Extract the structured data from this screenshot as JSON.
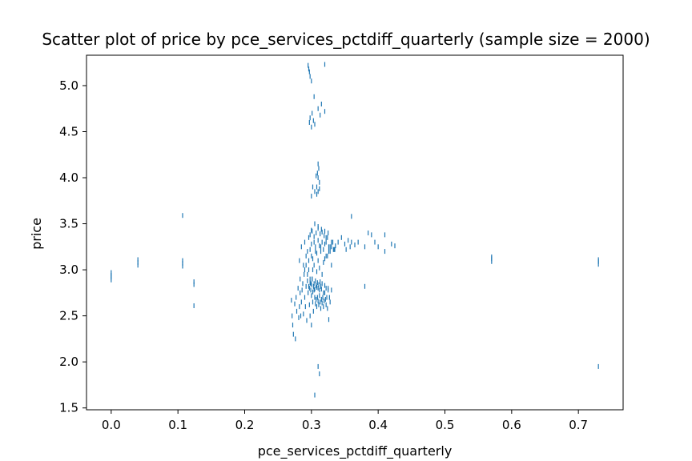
{
  "chart_data": {
    "type": "scatter",
    "title": "Scatter plot of price by pce_services_pctdiff_quarterly (sample size = 2000)",
    "xlabel": "pce_services_pctdiff_quarterly",
    "ylabel": "price",
    "xlim": [
      -0.037,
      0.767
    ],
    "ylim": [
      1.48,
      5.33
    ],
    "xticks": [
      "0.0",
      "0.1",
      "0.2",
      "0.3",
      "0.4",
      "0.5",
      "0.6",
      "0.7"
    ],
    "yticks": [
      "1.5",
      "2.0",
      "2.5",
      "3.0",
      "3.5",
      "4.0",
      "4.5",
      "5.0"
    ],
    "grid": false,
    "marker": "vertical-line",
    "series": [
      {
        "color": "#1f77b4",
        "x": [
          0.0,
          0.0,
          0.0,
          0.0,
          0.04,
          0.04,
          0.04,
          0.107,
          0.107,
          0.107,
          0.107,
          0.124,
          0.124,
          0.124,
          0.27,
          0.271,
          0.272,
          0.273,
          0.275,
          0.276,
          0.277,
          0.278,
          0.28,
          0.281,
          0.282,
          0.283,
          0.283,
          0.284,
          0.285,
          0.286,
          0.287,
          0.288,
          0.289,
          0.29,
          0.291,
          0.292,
          0.293,
          0.294,
          0.295,
          0.296,
          0.297,
          0.298,
          0.299,
          0.3,
          0.3,
          0.301,
          0.302,
          0.303,
          0.304,
          0.305,
          0.306,
          0.307,
          0.308,
          0.309,
          0.31,
          0.311,
          0.312,
          0.313,
          0.314,
          0.315,
          0.316,
          0.317,
          0.318,
          0.319,
          0.32,
          0.321,
          0.322,
          0.323,
          0.324,
          0.325,
          0.326,
          0.327,
          0.328,
          0.33,
          0.282,
          0.285,
          0.288,
          0.29,
          0.292,
          0.294,
          0.296,
          0.298,
          0.3,
          0.302,
          0.304,
          0.306,
          0.308,
          0.31,
          0.312,
          0.314,
          0.316,
          0.318,
          0.32,
          0.322,
          0.324,
          0.326,
          0.328,
          0.33,
          0.333,
          0.336,
          0.29,
          0.292,
          0.294,
          0.296,
          0.298,
          0.3,
          0.302,
          0.304,
          0.306,
          0.308,
          0.31,
          0.312,
          0.314,
          0.316,
          0.318,
          0.32,
          0.322,
          0.324,
          0.326,
          0.328,
          0.33,
          0.332,
          0.334,
          0.298,
          0.301,
          0.304,
          0.307,
          0.31,
          0.313,
          0.316,
          0.319,
          0.322,
          0.325,
          0.305,
          0.31,
          0.315,
          0.3,
          0.32,
          0.296,
          0.297,
          0.298,
          0.299,
          0.3,
          0.301,
          0.302,
          0.303,
          0.304,
          0.305,
          0.306,
          0.307,
          0.308,
          0.309,
          0.31,
          0.311,
          0.312,
          0.313,
          0.314,
          0.315,
          0.316,
          0.318,
          0.32,
          0.322,
          0.325,
          0.308,
          0.31,
          0.312,
          0.309,
          0.311,
          0.31,
          0.308,
          0.312,
          0.31,
          0.3,
          0.302,
          0.305,
          0.307,
          0.297,
          0.298,
          0.3,
          0.301,
          0.303,
          0.304,
          0.31,
          0.315,
          0.313,
          0.32,
          0.305,
          0.295,
          0.296,
          0.297,
          0.298,
          0.3,
          0.32,
          0.33,
          0.335,
          0.34,
          0.345,
          0.35,
          0.352,
          0.355,
          0.358,
          0.36,
          0.365,
          0.37,
          0.38,
          0.385,
          0.39,
          0.395,
          0.4,
          0.41,
          0.42,
          0.425,
          0.36,
          0.41,
          0.38,
          0.57,
          0.57,
          0.57,
          0.73,
          0.73,
          0.73,
          0.73,
          0.31,
          0.312,
          0.305
        ],
        "y": [
          2.97,
          2.94,
          2.92,
          2.89,
          3.11,
          3.08,
          3.05,
          3.59,
          3.1,
          3.07,
          3.04,
          2.87,
          2.84,
          2.61,
          2.67,
          2.5,
          2.4,
          2.3,
          2.63,
          2.25,
          2.7,
          2.55,
          2.8,
          2.48,
          2.6,
          2.75,
          2.9,
          2.5,
          2.65,
          2.78,
          2.85,
          2.52,
          2.95,
          2.7,
          2.6,
          2.82,
          2.45,
          2.88,
          2.75,
          3.0,
          2.62,
          2.5,
          2.85,
          2.72,
          2.4,
          2.9,
          2.65,
          2.55,
          2.78,
          2.7,
          2.63,
          2.68,
          2.6,
          2.7,
          2.66,
          2.62,
          2.72,
          2.65,
          2.58,
          2.68,
          2.64,
          2.7,
          2.6,
          2.66,
          2.75,
          2.68,
          2.62,
          2.7,
          2.58,
          2.8,
          2.46,
          2.7,
          2.65,
          2.78,
          3.1,
          3.25,
          3.05,
          3.3,
          3.15,
          3.2,
          3.35,
          3.22,
          3.28,
          3.12,
          3.3,
          3.25,
          3.18,
          3.32,
          3.26,
          3.2,
          3.3,
          3.22,
          3.28,
          3.15,
          3.35,
          3.25,
          3.2,
          3.3,
          3.22,
          3.26,
          3.0,
          3.05,
          2.95,
          3.1,
          2.9,
          3.15,
          3.0,
          3.05,
          3.2,
          2.98,
          3.1,
          3.02,
          3.25,
          2.95,
          3.08,
          3.12,
          3.3,
          3.15,
          3.2,
          3.25,
          3.05,
          3.3,
          3.22,
          3.38,
          3.42,
          3.36,
          3.4,
          3.45,
          3.39,
          3.41,
          3.37,
          3.35,
          3.4,
          3.5,
          3.47,
          3.44,
          3.43,
          3.42,
          2.82,
          2.8,
          2.86,
          2.78,
          2.84,
          2.9,
          2.76,
          2.82,
          2.85,
          2.79,
          2.88,
          2.83,
          2.81,
          2.86,
          2.8,
          2.84,
          2.78,
          2.87,
          2.82,
          2.79,
          2.85,
          2.75,
          2.83,
          2.8,
          2.78,
          3.9,
          3.85,
          3.95,
          4.05,
          4.1,
          4.15,
          3.82,
          3.88,
          4.0,
          3.8,
          3.9,
          3.85,
          4.02,
          4.6,
          4.65,
          4.55,
          4.7,
          4.62,
          4.88,
          4.75,
          4.8,
          4.68,
          4.72,
          4.58,
          5.22,
          5.18,
          5.15,
          5.1,
          5.05,
          5.23,
          3.25,
          3.22,
          3.3,
          3.35,
          3.28,
          3.22,
          3.32,
          3.25,
          3.3,
          3.27,
          3.3,
          3.25,
          3.4,
          3.38,
          3.3,
          3.25,
          3.2,
          3.28,
          3.26,
          3.58,
          3.38,
          2.82,
          3.14,
          3.12,
          3.09,
          3.11,
          3.09,
          3.06,
          1.95,
          1.95,
          1.87,
          1.64
        ]
      }
    ]
  }
}
